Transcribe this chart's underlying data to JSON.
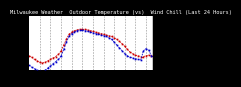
{
  "title": "Milwaukee Weather  Outdoor Temperature (vs)  Wind Chill (Last 24 Hours)",
  "bg_color": "#000000",
  "plot_bg": "#ffffff",
  "left_panel_color": "#000000",
  "temp_color": "#cc0000",
  "windchill_color": "#0000cc",
  "ylim": [
    -15,
    55
  ],
  "ytick_values": [
    60,
    50,
    40,
    30,
    20,
    10,
    0,
    -10
  ],
  "ytick_labels": [
    "60",
    "50",
    "40",
    "30",
    "20",
    "10",
    "0",
    "-10"
  ],
  "grid_color": "#888888",
  "temp_data": [
    5,
    3,
    0,
    -2,
    -4,
    -5,
    -4,
    -2,
    0,
    2,
    4,
    7,
    12,
    20,
    28,
    35,
    38,
    40,
    41,
    42,
    42,
    42,
    41,
    40,
    39,
    38,
    37,
    36,
    35,
    34,
    33,
    32,
    30,
    28,
    25,
    22,
    18,
    14,
    10,
    8,
    6,
    5,
    4,
    4,
    5,
    6,
    5,
    4
  ],
  "wc_data": [
    -8,
    -11,
    -13,
    -15,
    -16,
    -17,
    -15,
    -12,
    -9,
    -6,
    -3,
    0,
    5,
    14,
    24,
    32,
    36,
    38,
    40,
    41,
    41,
    40,
    39,
    38,
    37,
    36,
    35,
    34,
    33,
    32,
    30,
    28,
    24,
    20,
    16,
    12,
    8,
    5,
    3,
    2,
    1,
    0,
    -1,
    12,
    15,
    13,
    5,
    2
  ],
  "num_points": 48,
  "vline_positions": [
    4,
    8,
    12,
    16,
    20,
    24,
    28,
    32,
    36,
    40,
    44
  ],
  "xtick_positions": [
    0,
    4,
    8,
    12,
    16,
    20,
    24,
    28,
    32,
    36,
    40,
    44,
    47
  ],
  "xtick_labels": [
    "",
    "4",
    "8",
    "12",
    "16",
    "20",
    "24",
    "4",
    "8",
    "12",
    "16",
    "20",
    ""
  ],
  "title_fontsize": 3.8,
  "tick_fontsize": 3.2,
  "linewidth": 0.6,
  "markersize": 1.2,
  "right_bar_width": 0.09
}
